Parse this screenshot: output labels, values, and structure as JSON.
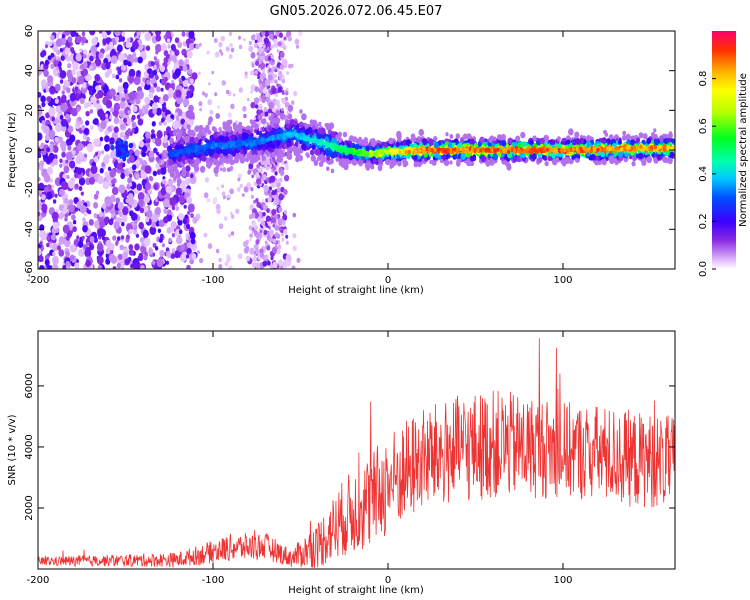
{
  "title": "GN05.2026.072.06.45.E07",
  "chart_data": [
    {
      "type": "heatmap",
      "xlabel": "Height of straight line (km)",
      "ylabel": "Frequency (Hz)",
      "xlim": [
        -200,
        164
      ],
      "ylim": [
        -60,
        60
      ],
      "xticks": [
        "-200",
        "-100",
        "0",
        "100"
      ],
      "yticks": [
        "60",
        "40",
        "20",
        "0",
        "-20",
        "-40",
        "-60"
      ],
      "colorbar": {
        "label": "Normalized spectral amplitude",
        "range": [
          0,
          1
        ],
        "ticks": [
          "0.0",
          "0.2",
          "0.4",
          "0.6",
          "0.8"
        ]
      },
      "ridge": {
        "description_points_x": [
          -125,
          -100,
          -75,
          -55,
          -40,
          -25,
          -10,
          0,
          20,
          50,
          100,
          164
        ],
        "description_points_y": [
          -2,
          2,
          4,
          8,
          4,
          0,
          -2,
          -1,
          0,
          0,
          0,
          1
        ],
        "amplitude": [
          0.3,
          0.35,
          0.35,
          0.4,
          0.45,
          0.55,
          0.7,
          0.75,
          0.95,
          0.95,
          0.95,
          0.9
        ]
      }
    },
    {
      "type": "line",
      "xlabel": "Height of straight line (km)",
      "ylabel": "SNR (10 * v/v)",
      "xlim": [
        -200,
        164
      ],
      "ylim": [
        0,
        7800
      ],
      "xticks": [
        "-200",
        "-100",
        "0",
        "100"
      ],
      "yticks": [
        "2000",
        "4000",
        "6000"
      ],
      "series": [
        {
          "name": "SNR",
          "color": "#ee3333",
          "envelope_x": [
            -200,
            -150,
            -120,
            -90,
            -70,
            -55,
            -40,
            -25,
            -10,
            0,
            20,
            40,
            60,
            80,
            100,
            120,
            140,
            164
          ],
          "envelope_mean": [
            250,
            280,
            300,
            700,
            750,
            350,
            800,
            1700,
            2200,
            2800,
            3600,
            3900,
            4100,
            4000,
            3900,
            3800,
            3600,
            3500
          ],
          "envelope_spread": [
            150,
            200,
            250,
            450,
            450,
            300,
            800,
            1300,
            1600,
            1700,
            1700,
            1800,
            1800,
            1700,
            1600,
            1600,
            1600,
            1500
          ]
        }
      ]
    }
  ]
}
